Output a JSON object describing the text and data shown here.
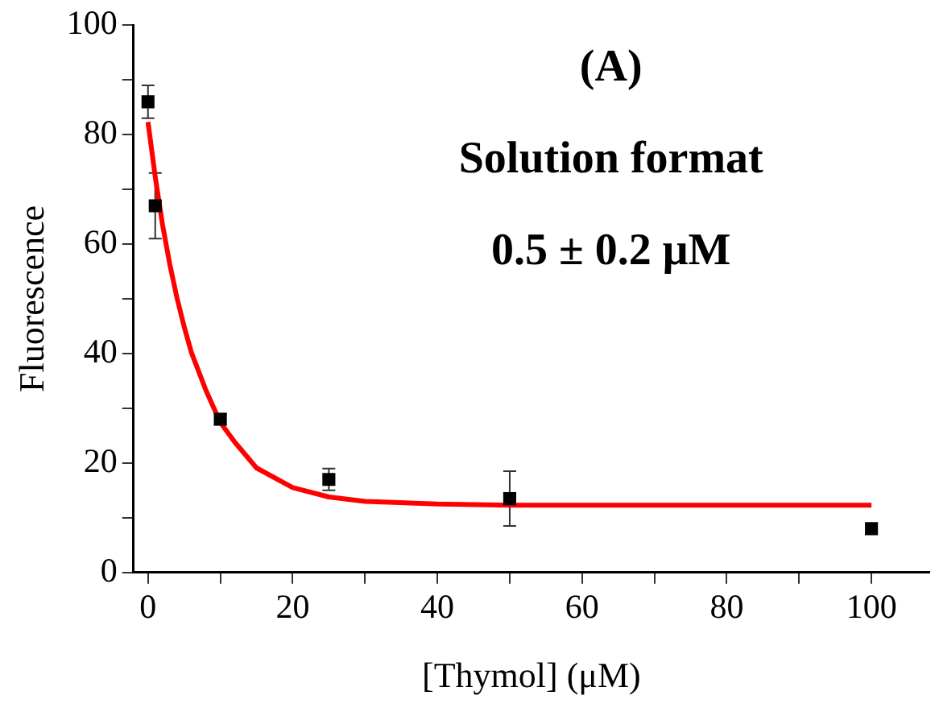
{
  "chart_data": {
    "type": "scatter",
    "xlabel": "[Thymol] (μM)",
    "ylabel": "Fluorescence",
    "annotations": [
      "(A)",
      "Solution format",
      "0.5 ± 0.2 μM"
    ],
    "xlim": [
      -2,
      108
    ],
    "ylim": [
      0,
      100
    ],
    "xticks": [
      0,
      {
        "value": 10,
        "label": null
      },
      20,
      {
        "value": 30,
        "label": null
      },
      40,
      {
        "value": 50,
        "label": null
      },
      60,
      {
        "value": 70,
        "label": null
      },
      80,
      {
        "value": 90,
        "label": null
      },
      100
    ],
    "yticks": [
      0,
      {
        "value": 10,
        "label": null
      },
      20,
      {
        "value": 30,
        "label": null
      },
      40,
      {
        "value": 50,
        "label": null
      },
      60,
      {
        "value": 70,
        "label": null
      },
      80,
      {
        "value": 90,
        "label": null
      },
      100
    ],
    "grid": false,
    "legend": false,
    "series": [
      {
        "color": "#000000",
        "marker": "square",
        "x": [
          0,
          1,
          10,
          25,
          50,
          100
        ],
        "values": [
          86,
          67,
          28,
          17,
          13.5,
          8
        ],
        "errors": [
          3,
          6,
          1,
          2,
          5,
          null
        ]
      },
      {
        "type": "line",
        "color": "#ff0000",
        "marker": "none",
        "line_style": "solid",
        "x": [
          0,
          1,
          2,
          3,
          4,
          5,
          6,
          8,
          10,
          12,
          15,
          20,
          25,
          30,
          40,
          50,
          60,
          80,
          100
        ],
        "values": [
          82.3,
          72.3,
          63.6,
          56.4,
          50.2,
          44.9,
          40.2,
          33.3,
          27.4,
          23.8,
          19.1,
          15.5,
          13.8,
          13,
          12.5,
          12.3,
          12.3,
          12.3,
          12.3
        ]
      }
    ]
  }
}
